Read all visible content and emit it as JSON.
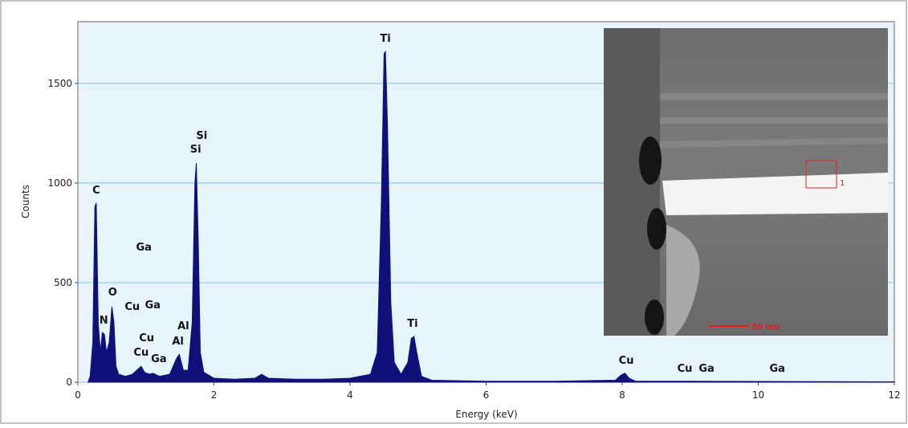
{
  "chart_data": {
    "type": "area",
    "x_label": "Energy (keV)",
    "y_label": "Counts",
    "xlim": [
      0,
      12
    ],
    "ylim": [
      0,
      1810
    ],
    "xticks": [
      0,
      2,
      4,
      6,
      8,
      10,
      12
    ],
    "yticks": [
      0,
      500,
      1000,
      1500
    ],
    "grid": true,
    "series": [
      {
        "color": "#10107a",
        "x": [
          0.15,
          0.18,
          0.22,
          0.25,
          0.27,
          0.3,
          0.33,
          0.36,
          0.39,
          0.42,
          0.46,
          0.5,
          0.53,
          0.56,
          0.6,
          0.7,
          0.8,
          0.93,
          0.98,
          1.05,
          1.1,
          1.2,
          1.35,
          1.45,
          1.49,
          1.55,
          1.62,
          1.68,
          1.72,
          1.74,
          1.77,
          1.8,
          1.85,
          2.0,
          2.3,
          2.6,
          2.7,
          2.8,
          3.2,
          3.6,
          4.0,
          4.3,
          4.4,
          4.46,
          4.5,
          4.52,
          4.55,
          4.6,
          4.65,
          4.75,
          4.85,
          4.9,
          4.94,
          4.98,
          5.05,
          5.2,
          6,
          7,
          7.9,
          7.98,
          8.04,
          8.1,
          8.2,
          9,
          10,
          11,
          12
        ],
        "values": [
          0,
          30,
          200,
          880,
          900,
          300,
          150,
          250,
          240,
          150,
          200,
          380,
          300,
          80,
          40,
          30,
          40,
          80,
          50,
          40,
          45,
          30,
          40,
          120,
          140,
          60,
          60,
          300,
          1000,
          1100,
          700,
          150,
          50,
          20,
          15,
          20,
          40,
          20,
          15,
          15,
          20,
          40,
          150,
          900,
          1650,
          1660,
          1300,
          400,
          100,
          40,
          100,
          220,
          230,
          150,
          30,
          10,
          5,
          5,
          10,
          35,
          45,
          20,
          5,
          5,
          4,
          3,
          2
        ]
      }
    ],
    "annotations": [
      {
        "text": "C",
        "x": 0.27,
        "y": 948
      },
      {
        "text": "N",
        "x": 0.38,
        "y": 294
      },
      {
        "text": "O",
        "x": 0.51,
        "y": 435
      },
      {
        "text": "Cu",
        "x": 0.8,
        "y": 363
      },
      {
        "text": "Ga",
        "x": 1.1,
        "y": 371
      },
      {
        "text": "Ga",
        "x": 0.97,
        "y": 661
      },
      {
        "text": "Cu",
        "x": 1.01,
        "y": 206
      },
      {
        "text": "Cu",
        "x": 0.93,
        "y": 133
      },
      {
        "text": "Ga",
        "x": 1.19,
        "y": 101
      },
      {
        "text": "Al",
        "x": 1.55,
        "y": 266
      },
      {
        "text": "Al",
        "x": 1.47,
        "y": 190
      },
      {
        "text": "Si",
        "x": 1.82,
        "y": 1222
      },
      {
        "text": "Si",
        "x": 1.73,
        "y": 1153
      },
      {
        "text": "Ti",
        "x": 4.52,
        "y": 1710
      },
      {
        "text": "Ti",
        "x": 4.92,
        "y": 278
      },
      {
        "text": "Cu",
        "x": 8.06,
        "y": 93
      },
      {
        "text": "Cu",
        "x": 8.92,
        "y": 52
      },
      {
        "text": "Ga",
        "x": 9.24,
        "y": 52
      },
      {
        "text": "Ga",
        "x": 10.28,
        "y": 52
      }
    ],
    "inset": {
      "region_label": "1",
      "scale_label": "50 nm"
    }
  }
}
